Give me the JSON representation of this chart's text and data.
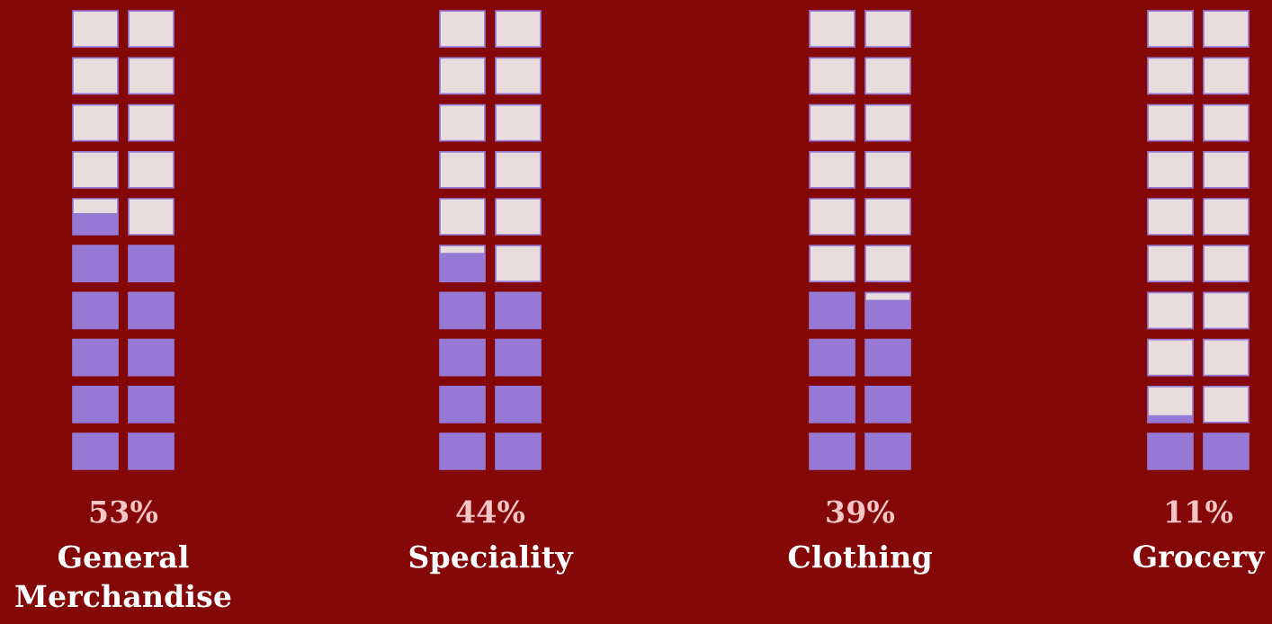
{
  "chart_data": {
    "type": "other",
    "categories": [
      "General Merchandise",
      "Speciality",
      "Clothing",
      "Grocery"
    ],
    "values": [
      53,
      44,
      39,
      11
    ],
    "value_labels": [
      "53%",
      "44%",
      "39%",
      "11%"
    ],
    "colors": [
      "#9679d4",
      "#9679d4",
      "#9679d4",
      "#9679d4"
    ]
  }
}
